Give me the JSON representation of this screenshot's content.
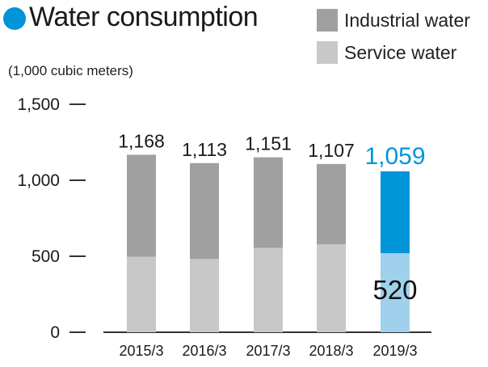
{
  "title": "Water consumption",
  "unit_label": "(1,000 cubic meters)",
  "colors": {
    "title_dot": "#0095d9",
    "industrial": "#a0a0a0",
    "service": "#c8c8c8",
    "highlight_industrial": "#0095d9",
    "highlight_service": "#9fd1ec",
    "highlight_text": "#0095d9",
    "axis": "#333333",
    "text": "#1a1a1a"
  },
  "chart_data": {
    "type": "bar",
    "stacked": true,
    "categories": [
      "2015/3",
      "2016/3",
      "2017/3",
      "2018/3",
      "2019/3"
    ],
    "series": [
      {
        "name": "Service water",
        "values": [
          497,
          482,
          555,
          578,
          520
        ]
      },
      {
        "name": "Industrial water",
        "values": [
          671,
          631,
          596,
          529,
          539
        ]
      }
    ],
    "totals": [
      "1,168",
      "1,113",
      "1,151",
      "1,107",
      "1,059"
    ],
    "highlight_index": 4,
    "highlight_service_label": "520",
    "ylabel": "(1,000 cubic meters)",
    "ylim": [
      0,
      1500
    ],
    "yticks": [
      {
        "value": 0,
        "label": "0"
      },
      {
        "value": 500,
        "label": "500"
      },
      {
        "value": 1000,
        "label": "1,000"
      },
      {
        "value": 1500,
        "label": "1,500"
      }
    ],
    "legend": {
      "placement": "top-right",
      "entries": [
        "Industrial water",
        "Service water"
      ]
    },
    "grid": false
  }
}
